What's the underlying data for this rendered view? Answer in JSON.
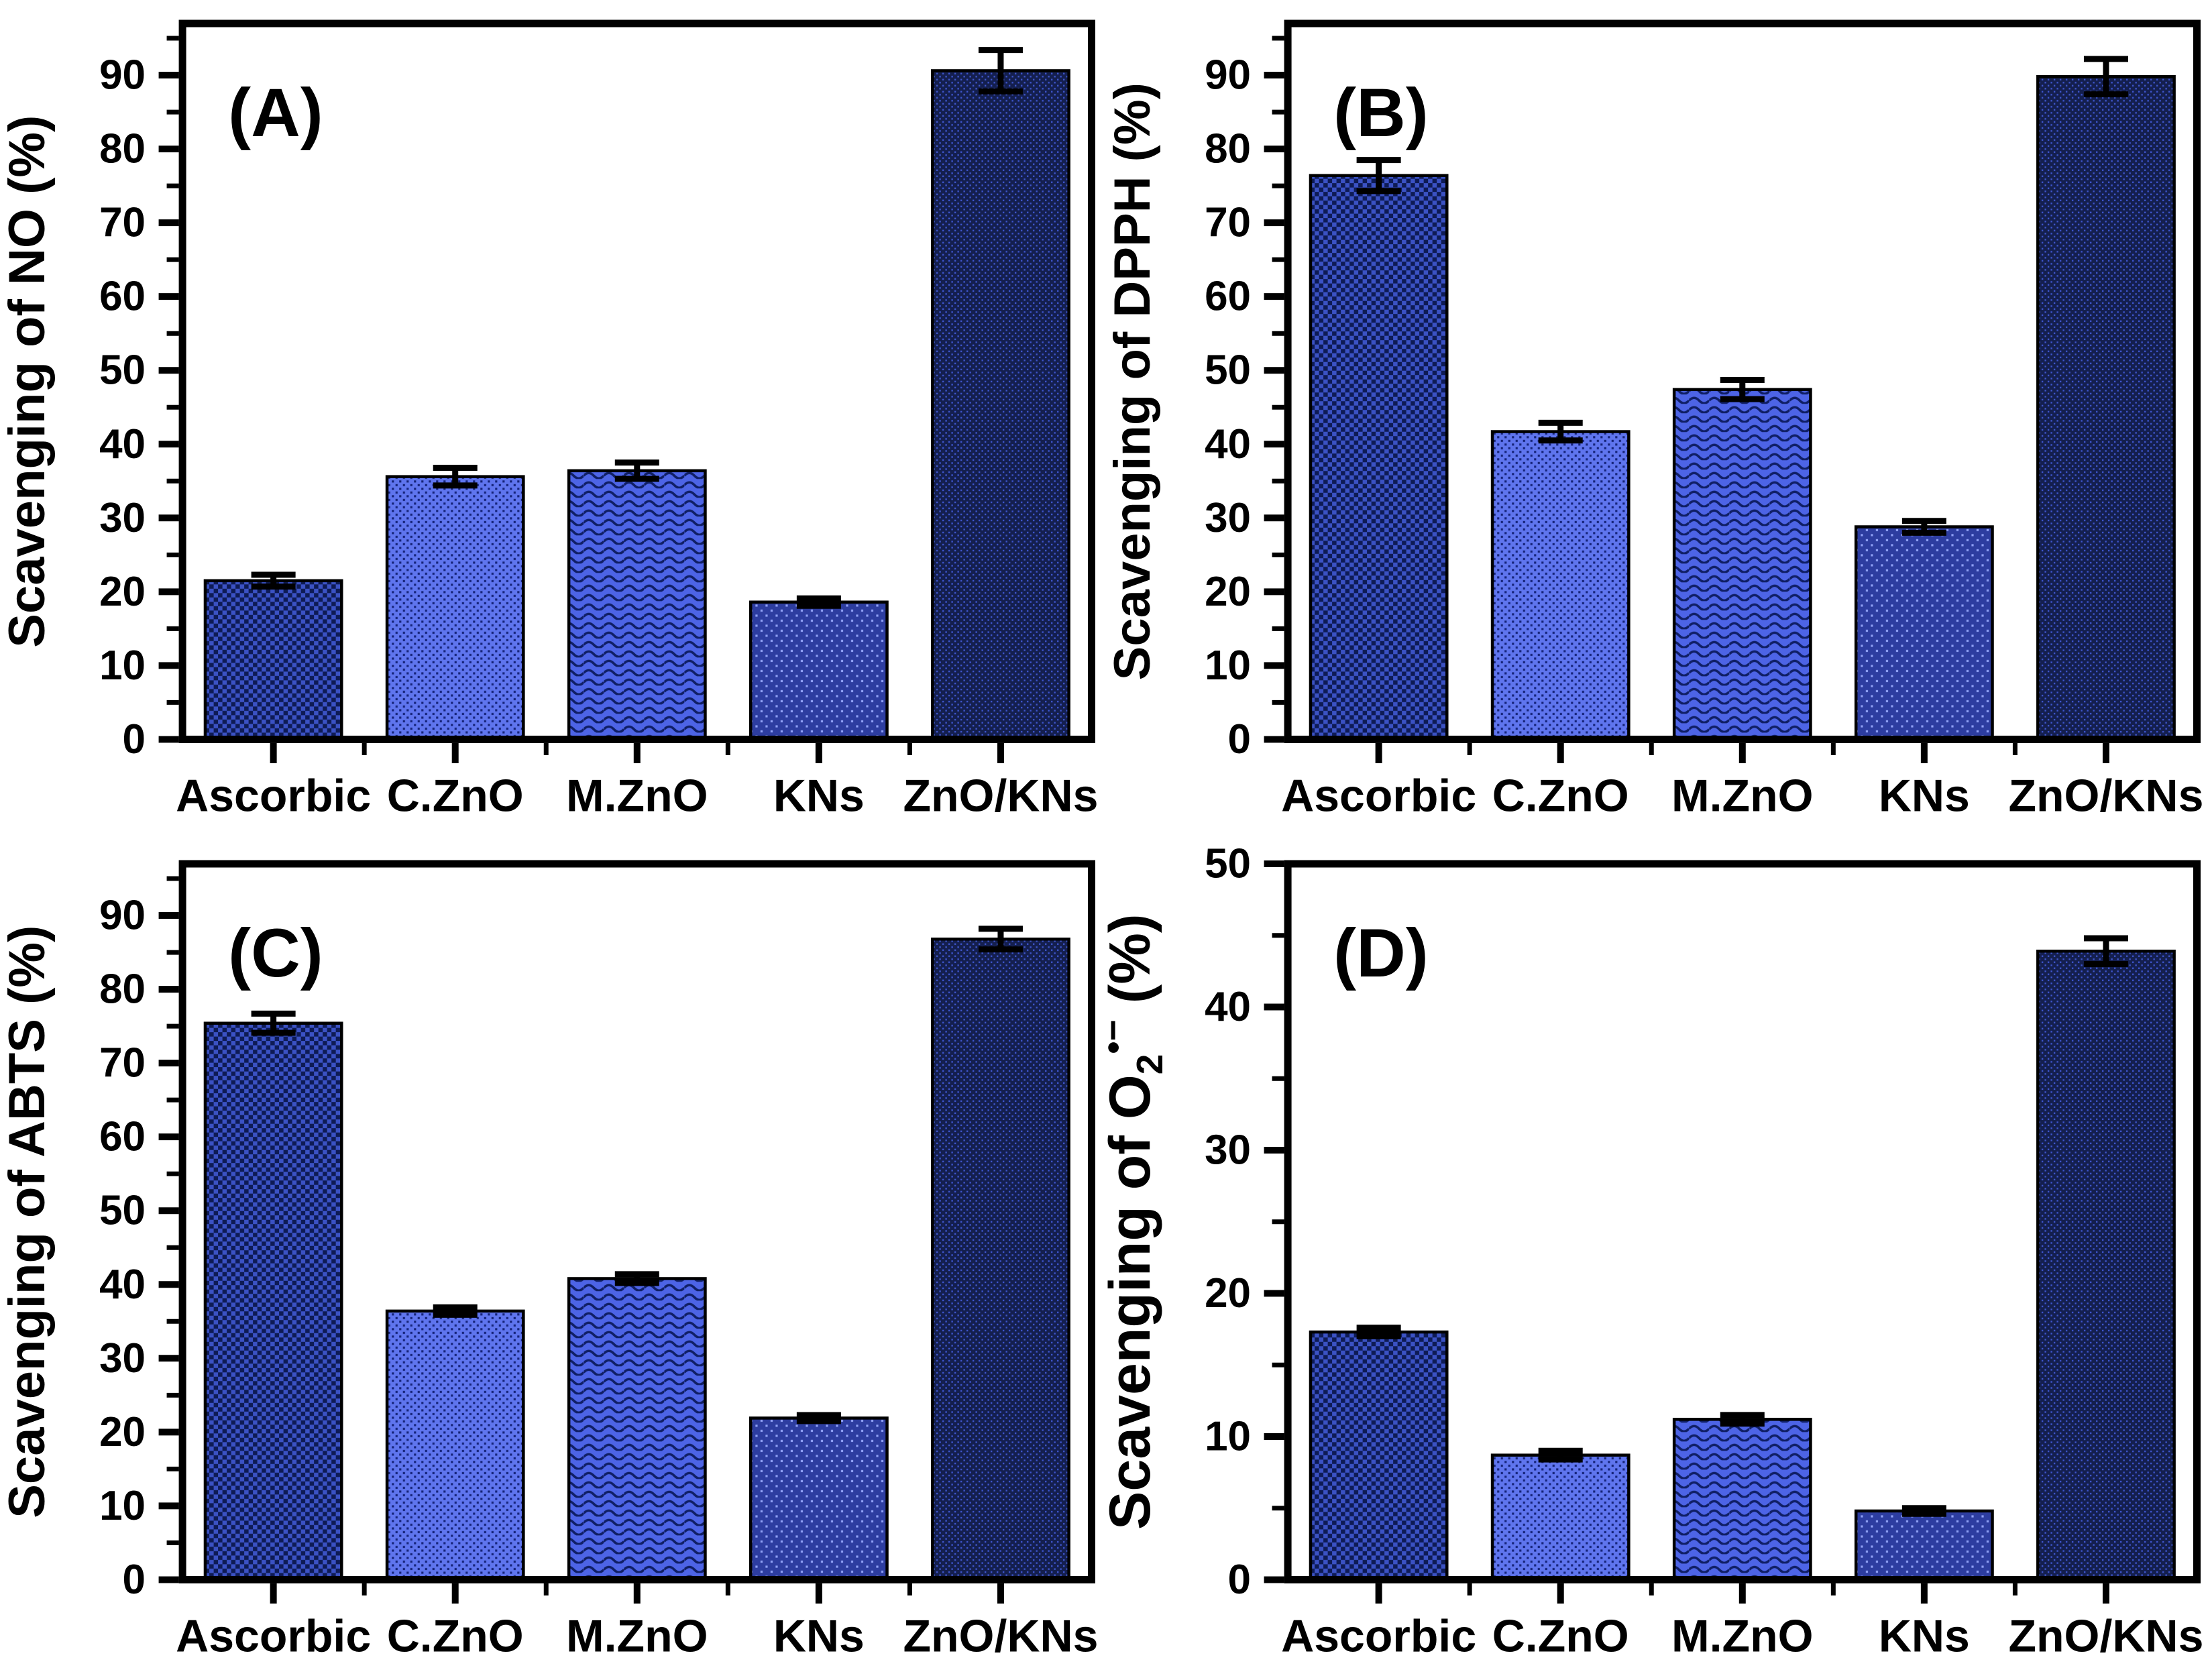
{
  "figure": {
    "background_color": "#ffffff",
    "axis_color": "#000000",
    "bar_edge_color": "#000000",
    "error_bar_color": "#000000",
    "layout": "2x2-grid"
  },
  "bar_styles": [
    {
      "category": "Ascorbic",
      "base_color": "#3b52c4",
      "pattern": "checker",
      "pattern_color": "#0e1b55"
    },
    {
      "category": "C.ZnO",
      "base_color": "#5f75ee",
      "pattern": "dots-dark",
      "pattern_color": "#16247a"
    },
    {
      "category": "M.ZnO",
      "base_color": "#4d64e6",
      "pattern": "waves",
      "pattern_color": "#101f66"
    },
    {
      "category": "KNs",
      "base_color": "#2d3da0",
      "pattern": "dots-light",
      "pattern_color": "#8fa0f5"
    },
    {
      "category": "ZnO/KNs",
      "base_color": "#141f4e",
      "pattern": "dots-light-fine",
      "pattern_color": "#3e55cc"
    }
  ],
  "chart_data": [
    {
      "type": "bar",
      "id": "A",
      "panel_label": "(A)",
      "categories": [
        "Ascorbic",
        "C.ZnO",
        "M.ZnO",
        "KNs",
        "ZnO/KNs"
      ],
      "values": [
        21.5,
        35.6,
        36.4,
        18.6,
        90.6
      ],
      "errors": [
        0.8,
        1.2,
        1.1,
        0.5,
        2.8
      ],
      "xlabel": "",
      "ylabel": "Scavenging of NO  (%)",
      "ylim": [
        0,
        97
      ],
      "ytick_interval": 10,
      "ytick_label_max": 90,
      "minor_tick_interval": 5,
      "grid": false,
      "legend": null,
      "error_bars": true
    },
    {
      "type": "bar",
      "id": "B",
      "panel_label": "(B)",
      "categories": [
        "Ascorbic",
        "C.ZnO",
        "M.ZnO",
        "KNs",
        "ZnO/KNs"
      ],
      "values": [
        76.4,
        41.7,
        47.4,
        28.8,
        89.8
      ],
      "errors": [
        2.1,
        1.2,
        1.3,
        0.8,
        2.4
      ],
      "xlabel": "",
      "ylabel": "Scavenging of DPPH (%)",
      "ylim": [
        0,
        97
      ],
      "ytick_interval": 10,
      "ytick_label_max": 90,
      "minor_tick_interval": 5,
      "grid": false,
      "legend": null,
      "error_bars": true
    },
    {
      "type": "bar",
      "id": "C",
      "panel_label": "(C)",
      "categories": [
        "Ascorbic",
        "C.ZnO",
        "M.ZnO",
        "KNs",
        "ZnO/KNs"
      ],
      "values": [
        75.4,
        36.4,
        40.8,
        21.9,
        86.8
      ],
      "errors": [
        1.3,
        0.5,
        0.6,
        0.4,
        1.4
      ],
      "xlabel": "",
      "ylabel": "Scavenging of ABTS (%)",
      "ylim": [
        0,
        97
      ],
      "ytick_interval": 10,
      "ytick_label_max": 90,
      "minor_tick_interval": 5,
      "grid": false,
      "legend": null,
      "error_bars": true
    },
    {
      "type": "bar",
      "id": "D",
      "panel_label": "(D)",
      "categories": [
        "Ascorbic",
        "C.ZnO",
        "M.ZnO",
        "KNs",
        "ZnO/KNs"
      ],
      "values": [
        17.3,
        8.7,
        11.2,
        4.8,
        43.9
      ],
      "errors": [
        0.3,
        0.3,
        0.3,
        0.2,
        0.9
      ],
      "xlabel": "",
      "ylabel": "Scavenging of O2•− (%)",
      "ylabel_parts": [
        {
          "text": "Scavenging of O"
        },
        {
          "text": "2",
          "script": "sub"
        },
        {
          "text": "•−",
          "script": "sup"
        },
        {
          "text": " (%)"
        }
      ],
      "ylim": [
        0,
        50
      ],
      "ytick_interval": 10,
      "ytick_label_max": 50,
      "minor_tick_interval": 5,
      "grid": false,
      "legend": null,
      "error_bars": true
    }
  ]
}
